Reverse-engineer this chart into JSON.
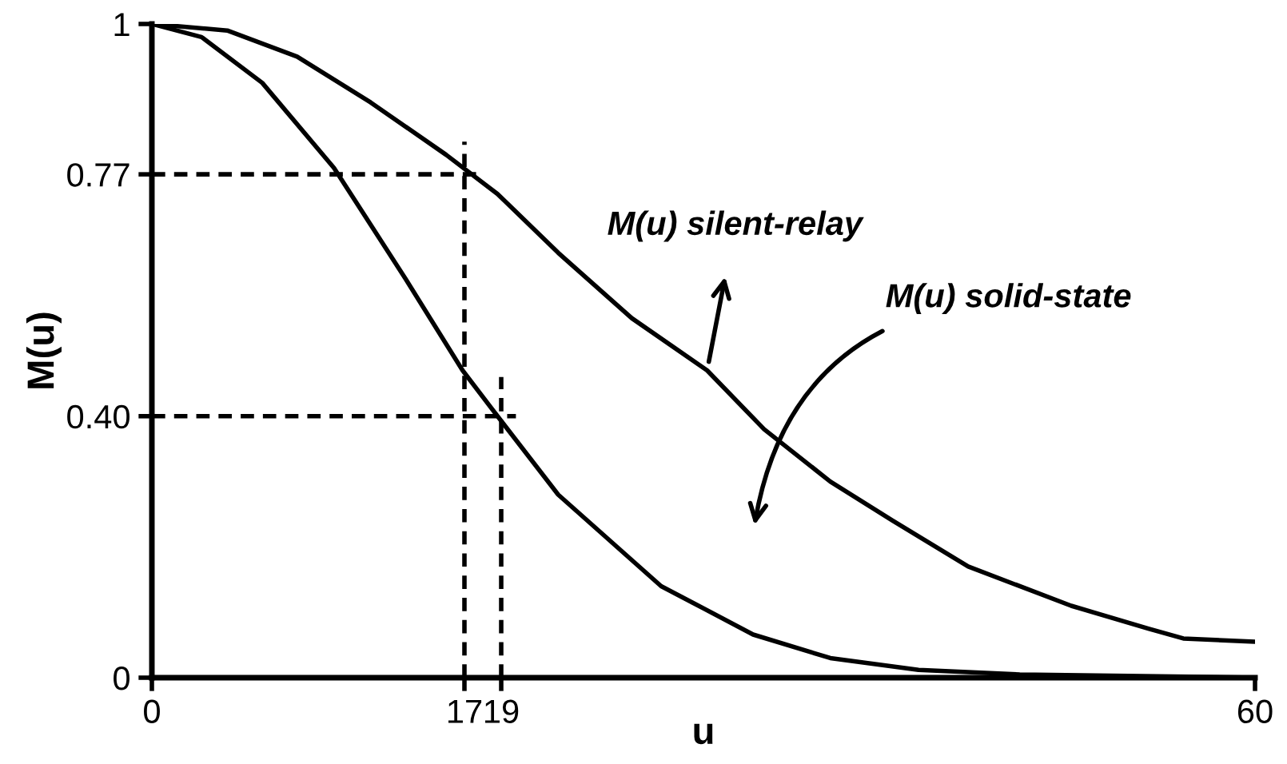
{
  "chart_data": {
    "type": "line",
    "xlabel": "u",
    "ylabel": "M(u)",
    "xlim": [
      0,
      60
    ],
    "ylim": [
      0,
      1
    ],
    "xticks": [
      0,
      17,
      19,
      60
    ],
    "yticks": [
      0,
      {
        "value": 0.4,
        "label": "0.40"
      },
      0.77,
      1
    ],
    "grid": false,
    "marker": "none",
    "series": [
      {
        "color": "#000000",
        "x": [
          0,
          4.1,
          7.9,
          11.9,
          16,
          18.8,
          22.1,
          26.1,
          30.2,
          33.3,
          36.9,
          40.3,
          44.4,
          50,
          54.2,
          56.1,
          60
        ],
        "values": [
          1,
          0.99,
          0.95,
          0.88,
          0.8,
          0.74,
          0.65,
          0.55,
          0.47,
          0.38,
          0.3,
          0.24,
          0.17,
          0.11,
          0.075,
          0.06,
          0.055
        ]
      },
      {
        "color": "#000000",
        "x": [
          0,
          2.7,
          6,
          9.9,
          13.8,
          16.9,
          18.8,
          22.1,
          27.7,
          29.4,
          32.7,
          36.9,
          41.7,
          47.2,
          60
        ],
        "values": [
          1,
          0.98,
          0.91,
          0.78,
          0.61,
          0.47,
          0.4,
          0.28,
          0.14,
          0.115,
          0.066,
          0.03,
          0.012,
          0.005,
          0
        ]
      },
      {
        "color": "#000000",
        "line_style": "dashed",
        "x": [
          17,
          17
        ],
        "values": [
          0,
          0.82
        ]
      },
      {
        "color": "#000000",
        "line_style": "dashed",
        "x": [
          19,
          19
        ],
        "values": [
          0,
          0.46
        ]
      },
      {
        "color": "#000000",
        "line_style": "dashed",
        "x": [
          0,
          18.1
        ],
        "values": [
          0.77,
          0.77
        ]
      },
      {
        "color": "#000000",
        "line_style": "dashed",
        "x": [
          0,
          19.8
        ],
        "values": [
          0.4,
          0.4
        ]
      }
    ],
    "annotations": [
      {
        "text": "M(u) silent-relay",
        "x": 30.2,
        "y": 0.47
      },
      "M(u) solid-state"
    ]
  }
}
